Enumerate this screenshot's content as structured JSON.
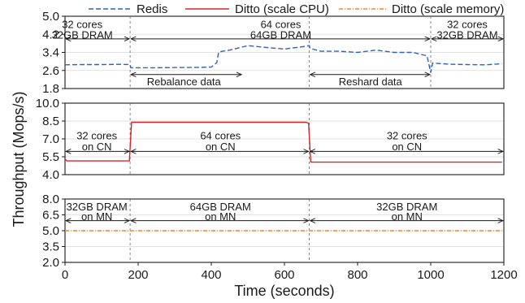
{
  "legend": [
    {
      "label": "Redis",
      "color": "#2f63b5",
      "dash": "dashed"
    },
    {
      "label": "Ditto (scale CPU)",
      "color": "#d62728",
      "dash": "solid"
    },
    {
      "label": "Ditto (scale memory)",
      "color": "#f0892a",
      "dash": "dashdot"
    }
  ],
  "chart_data": {
    "type": "line",
    "xlabel": "Time (seconds)",
    "ylabel": "Throughput (Mops/s)",
    "xlim": [
      0,
      1200
    ],
    "xticks": [
      0,
      200,
      400,
      600,
      800,
      1000,
      1200
    ],
    "grid": "horizontal",
    "legend_position": "top",
    "panels": [
      {
        "id": "redis",
        "ylim": [
          1.8,
          5.0
        ],
        "yticks": [
          "1.8",
          "2.6",
          "3.4",
          "4.2",
          "5.0"
        ],
        "series": [
          {
            "name": "Redis",
            "color": "#2f63b5",
            "style": "dashed",
            "x": [
              0,
              50,
              100,
              150,
              178,
              180,
              250,
              300,
              350,
              400,
              415,
              420,
              430,
              450,
              500,
              550,
              600,
              650,
              668,
              670,
              700,
              750,
              800,
              850,
              900,
              950,
              990,
              1000,
              1005,
              1050,
              1100,
              1150,
              1195
            ],
            "y": [
              2.85,
              2.86,
              2.86,
              2.87,
              2.86,
              2.72,
              2.72,
              2.73,
              2.73,
              2.75,
              2.95,
              3.4,
              3.45,
              3.5,
              3.7,
              3.62,
              3.55,
              3.65,
              3.7,
              3.58,
              3.45,
              3.45,
              3.4,
              3.5,
              3.4,
              3.4,
              3.25,
              2.5,
              2.93,
              2.88,
              2.86,
              2.85,
              2.9
            ]
          }
        ],
        "vlines": [
          178,
          668,
          1000
        ],
        "annotations": [
          {
            "text": [
              "32 cores",
              "32GB DRAM"
            ],
            "x": 47,
            "y": [
              4.65,
              4.2
            ]
          },
          {
            "text": [
              "64 cores",
              "64GB DRAM"
            ],
            "x": 590,
            "y": [
              4.65,
              4.2
            ]
          },
          {
            "text": [
              "32 cores",
              "32GB DRAM"
            ],
            "x": 1100,
            "y": [
              4.65,
              4.2
            ]
          },
          {
            "text": [
              "Rebalance data"
            ],
            "x": 325,
            "y": [
              2.13
            ]
          },
          {
            "text": [
              "Reshard data"
            ],
            "x": 835,
            "y": [
              2.13
            ]
          }
        ],
        "arrows": [
          {
            "from": 0,
            "to": 178,
            "y": 4.0
          },
          {
            "from": 178,
            "to": 1000,
            "y": 4.0
          },
          {
            "from": 1000,
            "to": 1200,
            "y": 4.0
          },
          {
            "from": 178,
            "to": 485,
            "y": 2.42
          },
          {
            "from": 668,
            "to": 1000,
            "y": 2.42
          }
        ]
      },
      {
        "id": "cpu",
        "ylim": [
          4.0,
          10.0
        ],
        "yticks": [
          "4.0",
          "5.5",
          "7.0",
          "8.5",
          "10.0"
        ],
        "series": [
          {
            "name": "Ditto (scale CPU)",
            "color": "#d62728",
            "style": "solid",
            "x": [
              0,
              5,
              176,
              182,
              660,
              666,
              672,
              1195
            ],
            "y": [
              5.3,
              5.15,
              5.15,
              8.4,
              8.4,
              8.3,
              5.05,
              5.05
            ]
          }
        ],
        "vlines": [
          178,
          668
        ],
        "annotations": [
          {
            "text": [
              "32 cores",
              "on CN"
            ],
            "x": 87,
            "y": [
              7.3,
              6.4
            ]
          },
          {
            "text": [
              "64 cores",
              "on CN"
            ],
            "x": 425,
            "y": [
              7.3,
              6.4
            ]
          },
          {
            "text": [
              "32 cores",
              "on CN"
            ],
            "x": 935,
            "y": [
              7.3,
              6.4
            ]
          }
        ],
        "arrows": [
          {
            "from": 0,
            "to": 178,
            "y": 5.95
          },
          {
            "from": 178,
            "to": 668,
            "y": 5.95
          },
          {
            "from": 668,
            "to": 1200,
            "y": 5.95
          }
        ]
      },
      {
        "id": "memory",
        "ylim": [
          2.0,
          8.0
        ],
        "yticks": [
          "2.0",
          "3.5",
          "5.0",
          "6.5",
          "8.0"
        ],
        "series": [
          {
            "name": "Ditto (scale memory)",
            "color": "#f0892a",
            "style": "dashdot",
            "x": [
              0,
              1195
            ],
            "y": [
              5.0,
              5.0
            ]
          }
        ],
        "vlines": [
          178,
          668
        ],
        "annotations": [
          {
            "text": [
              "32GB DRAM",
              "on MN"
            ],
            "x": 87,
            "y": [
              7.3,
              6.4
            ]
          },
          {
            "text": [
              "64GB DRAM",
              "on MN"
            ],
            "x": 425,
            "y": [
              7.3,
              6.4
            ]
          },
          {
            "text": [
              "32GB DRAM",
              "on MN"
            ],
            "x": 935,
            "y": [
              7.3,
              6.4
            ]
          }
        ],
        "arrows": [
          {
            "from": 0,
            "to": 178,
            "y": 5.95
          },
          {
            "from": 178,
            "to": 668,
            "y": 5.95
          },
          {
            "from": 668,
            "to": 1200,
            "y": 5.95
          }
        ]
      }
    ]
  }
}
